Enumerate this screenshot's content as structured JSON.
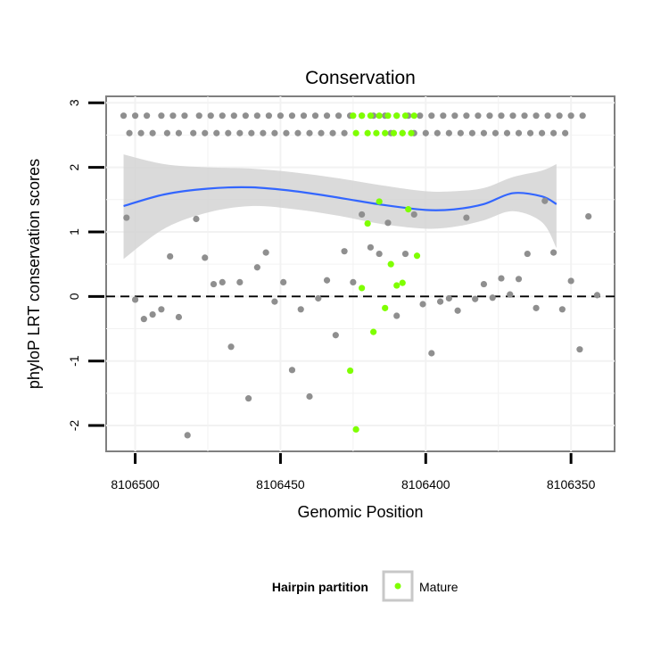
{
  "chart_data": {
    "type": "scatter",
    "title": "Conservation",
    "xlabel": "Genomic Position",
    "ylabel": "phyloP LRT conservation scores",
    "x_reversed": true,
    "xlim": [
      8106510,
      8106335
    ],
    "ylim": [
      -2.4,
      3.1
    ],
    "x_ticks": [
      8106500,
      8106450,
      8106400,
      8106350
    ],
    "y_ticks": [
      -2,
      -1,
      0,
      1,
      2,
      3
    ],
    "grid": true,
    "reference_line": {
      "y": 0,
      "style": "dashed"
    },
    "legend": {
      "title": "Hairpin partition",
      "entries": [
        "Mature"
      ],
      "placement": "bottom"
    },
    "colors": {
      "other": "#8f8f8f",
      "mature": "#7fff00",
      "smooth": "#3366ff",
      "band": "#d3d3d3",
      "panel_border": "#7f7f7f",
      "grid": "#f2f2f2"
    },
    "smooth": {
      "x": [
        8106504,
        8106490,
        8106475,
        8106460,
        8106445,
        8106430,
        8106415,
        8106400,
        8106390,
        8106380,
        8106370,
        8106360,
        8106355
      ],
      "y": [
        1.4,
        1.58,
        1.67,
        1.69,
        1.63,
        1.53,
        1.42,
        1.34,
        1.35,
        1.43,
        1.6,
        1.55,
        1.43
      ],
      "lower": [
        0.58,
        1.05,
        1.3,
        1.4,
        1.35,
        1.25,
        1.12,
        1.05,
        1.08,
        1.18,
        1.32,
        1.15,
        0.75
      ],
      "upper": [
        2.2,
        2.05,
        2.0,
        1.98,
        1.92,
        1.83,
        1.72,
        1.63,
        1.63,
        1.68,
        1.85,
        1.95,
        2.05
      ]
    },
    "series": [
      {
        "name": "",
        "x": [
          8106504,
          8106500,
          8106496,
          8106491,
          8106487,
          8106483,
          8106478,
          8106474,
          8106470,
          8106466,
          8106462,
          8106458,
          8106454,
          8106450,
          8106446,
          8106442,
          8106438,
          8106434,
          8106430,
          8106426,
          8106422,
          8106418,
          8106414,
          8106410,
          8106406,
          8106402,
          8106398,
          8106394,
          8106390,
          8106386,
          8106382,
          8106378,
          8106374,
          8106370,
          8106366,
          8106362,
          8106358,
          8106354,
          8106350,
          8106346,
          8106502,
          8106498,
          8106494,
          8106489,
          8106485,
          8106480,
          8106476,
          8106472,
          8106468,
          8106464,
          8106460,
          8106456,
          8106452,
          8106448,
          8106444,
          8106440,
          8106436,
          8106432,
          8106428,
          8106412,
          8106408,
          8106404,
          8106400,
          8106396,
          8106392,
          8106388,
          8106384,
          8106380,
          8106376,
          8106372,
          8106368,
          8106364,
          8106360,
          8106356,
          8106352,
          8106503,
          8106500,
          8106497,
          8106494,
          8106491,
          8106488,
          8106485,
          8106482,
          8106479,
          8106476,
          8106473,
          8106470,
          8106467,
          8106464,
          8106461,
          8106458,
          8106455,
          8106452,
          8106449,
          8106446,
          8106443,
          8106440,
          8106437,
          8106434,
          8106431,
          8106428,
          8106425,
          8106422,
          8106419,
          8106416,
          8106413,
          8106410,
          8106407,
          8106404,
          8106401,
          8106398,
          8106395,
          8106392,
          8106389,
          8106386,
          8106383,
          8106380,
          8106377,
          8106374,
          8106371,
          8106368,
          8106365,
          8106362,
          8106359,
          8106356,
          8106353,
          8106350,
          8106347,
          8106344,
          8106341
        ],
        "y": [
          2.8,
          2.8,
          2.8,
          2.8,
          2.8,
          2.8,
          2.8,
          2.8,
          2.8,
          2.8,
          2.8,
          2.8,
          2.8,
          2.8,
          2.8,
          2.8,
          2.8,
          2.8,
          2.8,
          2.8,
          2.8,
          2.8,
          2.8,
          2.8,
          2.8,
          2.8,
          2.8,
          2.8,
          2.8,
          2.8,
          2.8,
          2.8,
          2.8,
          2.8,
          2.8,
          2.8,
          2.8,
          2.8,
          2.8,
          2.8,
          2.53,
          2.53,
          2.53,
          2.53,
          2.53,
          2.53,
          2.53,
          2.53,
          2.53,
          2.53,
          2.53,
          2.53,
          2.53,
          2.53,
          2.53,
          2.53,
          2.53,
          2.53,
          2.53,
          2.53,
          2.53,
          2.53,
          2.53,
          2.53,
          2.53,
          2.53,
          2.53,
          2.53,
          2.53,
          2.53,
          2.53,
          2.53,
          2.53,
          2.53,
          2.53,
          1.22,
          -0.05,
          -0.35,
          -0.28,
          -0.2,
          0.62,
          -0.32,
          -2.15,
          1.2,
          0.6,
          0.19,
          0.22,
          -0.78,
          0.22,
          -1.58,
          0.45,
          0.68,
          -0.08,
          0.22,
          -1.14,
          -0.2,
          -1.55,
          -0.03,
          0.25,
          -0.6,
          0.7,
          0.22,
          1.27,
          0.76,
          0.66,
          1.14,
          -0.3,
          0.66,
          1.27,
          -0.12,
          -0.88,
          -0.08,
          -0.03,
          -0.22,
          1.22,
          -0.04,
          0.19,
          -0.02,
          0.28,
          0.03,
          0.27,
          0.66,
          -0.18,
          1.48,
          0.68,
          -0.2,
          0.24,
          -0.82,
          1.24,
          0.02
        ]
      },
      {
        "name": "Mature",
        "x": [
          8106425,
          8106422,
          8106419,
          8106416,
          8106413,
          8106410,
          8106407,
          8106404,
          8106424,
          8106420,
          8106417,
          8106414,
          8106411,
          8106408,
          8106405,
          8106426,
          8106424,
          8106422,
          8106420,
          8106418,
          8106416,
          8106414,
          8106412,
          8106410,
          8106408,
          8106406,
          8106403
        ],
        "y": [
          2.8,
          2.8,
          2.8,
          2.8,
          2.8,
          2.8,
          2.8,
          2.8,
          2.53,
          2.53,
          2.53,
          2.53,
          2.53,
          2.53,
          2.53,
          -1.15,
          -2.06,
          0.13,
          1.13,
          -0.55,
          1.47,
          -0.18,
          0.5,
          0.17,
          0.21,
          1.35,
          0.63
        ]
      }
    ]
  }
}
